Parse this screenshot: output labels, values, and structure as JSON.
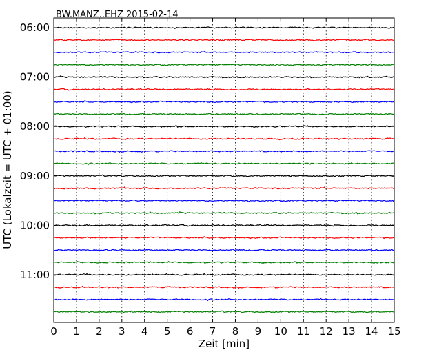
{
  "chart_data": {
    "type": "line",
    "title": "BW.MANZ..EHZ 2015-02-14",
    "xlabel": "Zeit  [min]",
    "ylabel": "UTC (Lokalzeit = UTC + 01:00)",
    "xlim": [
      0,
      15
    ],
    "xticks": [
      "0",
      "1",
      "2",
      "3",
      "4",
      "5",
      "6",
      "7",
      "8",
      "9",
      "10",
      "11",
      "12",
      "13",
      "14",
      "15"
    ],
    "yticks": [
      "06:00",
      "07:00",
      "08:00",
      "09:00",
      "10:00",
      "11:00"
    ],
    "trace_start": "06:00",
    "trace_interval_min": 15,
    "trace_count": 24,
    "grid_x": true,
    "color_cycle": [
      "#000000",
      "#ff0000",
      "#0000ff",
      "#007f00"
    ]
  }
}
